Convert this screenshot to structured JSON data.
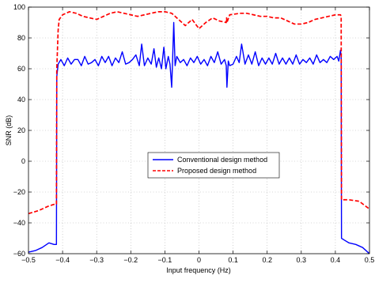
{
  "chart_data": {
    "type": "line",
    "xlabel": "Input frequency (Hz)",
    "ylabel": "SNR (dB)",
    "xlim": [
      -0.5,
      0.5
    ],
    "ylim": [
      -60,
      100
    ],
    "xticks": [
      -0.5,
      -0.4,
      -0.3,
      -0.2,
      -0.1,
      0,
      0.1,
      0.2,
      0.3,
      0.4,
      0.5
    ],
    "xtick_labels": [
      "−0.5",
      "−0.4",
      "−0.3",
      "−0.2",
      "−0.1",
      "0",
      "0.1",
      "0.2",
      "0.3",
      "0.4",
      "0.5"
    ],
    "yticks": [
      -60,
      -40,
      -20,
      0,
      20,
      40,
      60,
      80,
      100
    ],
    "ytick_labels": [
      "−60",
      "−40",
      "−20",
      "0",
      "20",
      "40",
      "60",
      "80",
      "100"
    ],
    "grid": true,
    "legend_position": "center",
    "series": [
      {
        "name": "Conventional design method",
        "color": "#0000ff",
        "style": "solid",
        "x": [
          -0.5,
          -0.48,
          -0.46,
          -0.44,
          -0.425,
          -0.418,
          -0.417,
          -0.413,
          -0.405,
          -0.395,
          -0.385,
          -0.375,
          -0.365,
          -0.355,
          -0.345,
          -0.335,
          -0.325,
          -0.315,
          -0.305,
          -0.295,
          -0.285,
          -0.275,
          -0.265,
          -0.255,
          -0.245,
          -0.235,
          -0.225,
          -0.215,
          -0.205,
          -0.195,
          -0.185,
          -0.175,
          -0.168,
          -0.16,
          -0.15,
          -0.14,
          -0.132,
          -0.125,
          -0.118,
          -0.11,
          -0.103,
          -0.097,
          -0.09,
          -0.085,
          -0.08,
          -0.077,
          -0.074,
          -0.07,
          -0.065,
          -0.055,
          -0.045,
          -0.035,
          -0.025,
          -0.015,
          -0.005,
          0.005,
          0.015,
          0.025,
          0.035,
          0.045,
          0.055,
          0.065,
          0.075,
          0.08,
          0.082,
          0.086,
          0.09,
          0.1,
          0.11,
          0.118,
          0.125,
          0.135,
          0.145,
          0.155,
          0.165,
          0.175,
          0.185,
          0.195,
          0.205,
          0.215,
          0.225,
          0.235,
          0.245,
          0.255,
          0.265,
          0.275,
          0.285,
          0.295,
          0.305,
          0.315,
          0.325,
          0.335,
          0.345,
          0.355,
          0.365,
          0.375,
          0.385,
          0.395,
          0.405,
          0.41,
          0.415,
          0.417,
          0.418,
          0.425,
          0.44,
          0.46,
          0.48,
          0.5
        ],
        "y": [
          -59,
          -58,
          -56,
          -53,
          -54,
          -54,
          55,
          63,
          66,
          62,
          67,
          63,
          66,
          66,
          62,
          68,
          63,
          64,
          66,
          62,
          68,
          64,
          68,
          62,
          67,
          64,
          71,
          63,
          64,
          66,
          69,
          62,
          76,
          62,
          67,
          63,
          73,
          61,
          67,
          60,
          74,
          60,
          68,
          63,
          48,
          68,
          90,
          62,
          68,
          64,
          66,
          62,
          67,
          64,
          68,
          63,
          66,
          62,
          68,
          64,
          71,
          63,
          66,
          62,
          48,
          65,
          62,
          63,
          68,
          64,
          76,
          63,
          69,
          63,
          71,
          62,
          67,
          63,
          67,
          63,
          70,
          63,
          67,
          63,
          67,
          63,
          69,
          63,
          66,
          64,
          67,
          63,
          69,
          64,
          66,
          64,
          68,
          66,
          68,
          65,
          72,
          68,
          -50,
          -51,
          -53,
          -54,
          -56,
          -60
        ]
      },
      {
        "name": "Proposed design method",
        "color": "#ff0000",
        "style": "dashed",
        "x": [
          -0.5,
          -0.47,
          -0.44,
          -0.425,
          -0.418,
          -0.417,
          -0.413,
          -0.41,
          -0.4,
          -0.38,
          -0.36,
          -0.34,
          -0.32,
          -0.3,
          -0.28,
          -0.26,
          -0.24,
          -0.22,
          -0.2,
          -0.18,
          -0.16,
          -0.14,
          -0.12,
          -0.1,
          -0.08,
          -0.06,
          -0.04,
          -0.02,
          0,
          0.02,
          0.04,
          0.06,
          0.08,
          0.081,
          0.082,
          0.09,
          0.12,
          0.14,
          0.16,
          0.18,
          0.2,
          0.22,
          0.24,
          0.26,
          0.28,
          0.3,
          0.32,
          0.34,
          0.36,
          0.38,
          0.4,
          0.41,
          0.415,
          0.417,
          0.418,
          0.44,
          0.47,
          0.5
        ],
        "y": [
          -34,
          -32,
          -29,
          -28,
          -28,
          60,
          85,
          92,
          95,
          97,
          96,
          94,
          93,
          92,
          94,
          96,
          97,
          96,
          95,
          94,
          95,
          96,
          97,
          97,
          96,
          92,
          88,
          92,
          86,
          90,
          93,
          91,
          90,
          93,
          90,
          95,
          96,
          96,
          95,
          94,
          94,
          93,
          93,
          91,
          89,
          89,
          90,
          92,
          93,
          94,
          95,
          95,
          95,
          94,
          -25,
          -25,
          -26,
          -31
        ]
      }
    ]
  }
}
